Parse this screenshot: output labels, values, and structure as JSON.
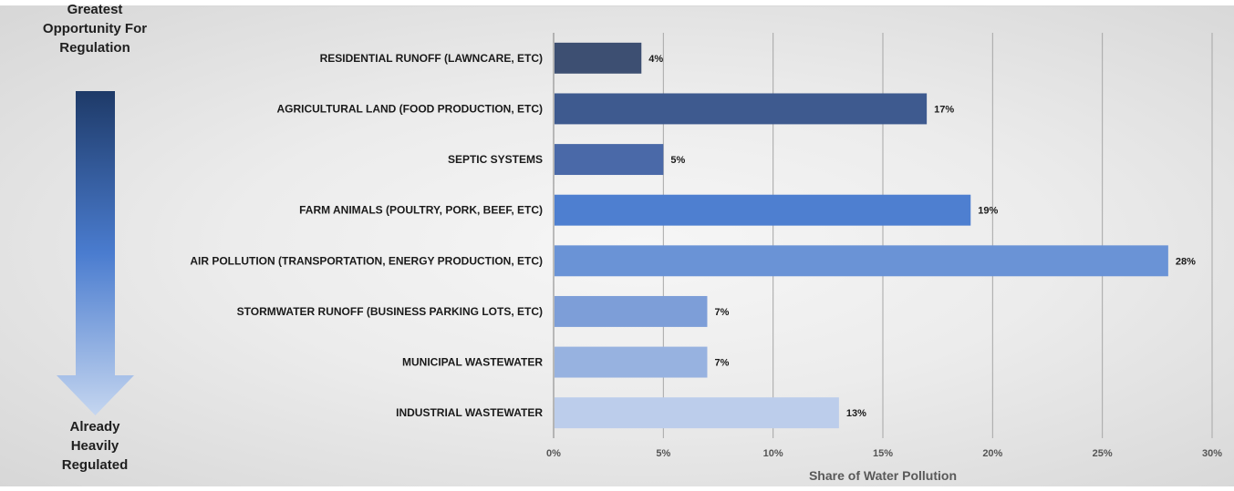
{
  "scale_indicator": {
    "top_label": [
      "Greatest",
      "Opportunity For",
      "Regulation"
    ],
    "bottom_label": [
      "Already",
      "Heavily",
      "Regulated"
    ],
    "gradient_top_color": "#1e3a68",
    "gradient_mid_color": "#4a7ccf",
    "gradient_bottom_color": "#c5d6f0"
  },
  "chart_data": {
    "type": "bar",
    "orientation": "horizontal",
    "categories": [
      "RESIDENTIAL RUNOFF (LAWNCARE, ETC)",
      "AGRICULTURAL LAND (FOOD PRODUCTION, ETC)",
      "SEPTIC SYSTEMS",
      "FARM ANIMALS (POULTRY, PORK, BEEF, ETC)",
      "AIR POLLUTION (TRANSPORTATION, ENERGY PRODUCTION, ETC)",
      "STORMWATER RUNOFF (BUSINESS PARKING LOTS, ETC)",
      "MUNICIPAL WASTEWATER",
      "INDUSTRIAL WASTEWATER"
    ],
    "values": [
      4,
      17,
      5,
      19,
      28,
      7,
      7,
      13
    ],
    "value_labels": [
      "4%",
      "17%",
      "5%",
      "19%",
      "28%",
      "7%",
      "7%",
      "13%"
    ],
    "bar_colors": [
      "#3d4f72",
      "#3e5a8f",
      "#4a69a8",
      "#4e7fd0",
      "#6a93d6",
      "#7d9ed8",
      "#97b2e0",
      "#bccdeb"
    ],
    "xlabel": "Share of Water Pollution",
    "ylabel": "",
    "xlim": [
      0,
      30
    ],
    "xticks": [
      0,
      5,
      10,
      15,
      20,
      25,
      30
    ],
    "xtick_labels": [
      "0%",
      "5%",
      "10%",
      "15%",
      "20%",
      "25%",
      "30%"
    ],
    "grid": "vertical"
  }
}
